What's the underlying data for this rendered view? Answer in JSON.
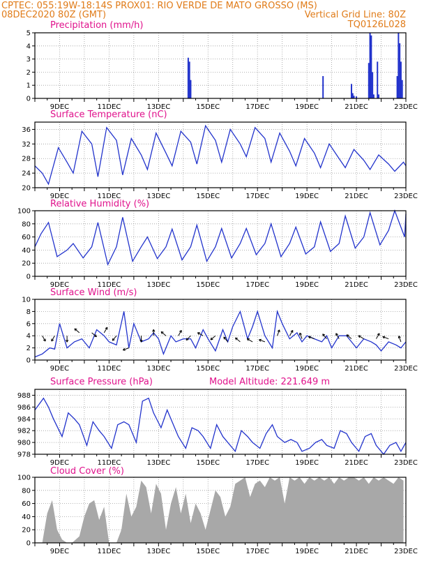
{
  "header": {
    "left_line1": "CPTEC:   055:19W-18:14S   PROX01: RIO VERDE DE MATO GROSSO (MS)",
    "left_line2": "08DEC2020 80Z (GMT)",
    "right_line2": "Vertical Grid Line: 80Z",
    "right_line3": "TQ0126L028"
  },
  "colors": {
    "header": "#e07b18",
    "title": "#e0128c",
    "line": "#2233cc",
    "cloud": "#a8a8a8",
    "grid": "#9a9a9a"
  },
  "date_labels": [
    "9DEC",
    "11DEC",
    "13DEC",
    "15DEC",
    "17DEC",
    "19DEC",
    "21DEC",
    "23DEC"
  ],
  "chart_data": [
    {
      "id": "precip",
      "type": "bar",
      "title": "Precipitation (mm/h)",
      "x_range_days": [
        8.0,
        23.0
      ],
      "ylim": [
        0,
        5
      ],
      "yticks": [
        0,
        1,
        2,
        3,
        4,
        5
      ],
      "x": [
        14.2,
        14.25,
        14.3,
        19.65,
        20.8,
        20.85,
        20.9,
        21.0,
        21.5,
        21.55,
        21.6,
        21.65,
        21.7,
        21.85,
        21.9,
        22.65,
        22.7,
        22.75,
        22.8,
        22.85
      ],
      "values": [
        3.1,
        2.8,
        1.4,
        1.7,
        1.1,
        0.4,
        0.2,
        0.15,
        2.7,
        5.0,
        4.8,
        2.0,
        0.3,
        2.8,
        0.3,
        1.7,
        5.0,
        4.2,
        2.8,
        1.4
      ]
    },
    {
      "id": "temp",
      "type": "line",
      "title": "Surface Temperature (nC)",
      "x_range_days": [
        8.0,
        23.0
      ],
      "ylim": [
        20,
        38
      ],
      "yticks": [
        20,
        24,
        28,
        32,
        36
      ],
      "x": [
        8.0,
        8.3,
        8.55,
        8.95,
        9.3,
        9.55,
        9.9,
        10.3,
        10.55,
        10.9,
        11.3,
        11.55,
        11.9,
        12.3,
        12.55,
        12.9,
        13.3,
        13.55,
        13.9,
        14.3,
        14.55,
        14.9,
        15.3,
        15.55,
        15.9,
        16.3,
        16.55,
        16.9,
        17.3,
        17.55,
        17.9,
        18.3,
        18.55,
        18.9,
        19.3,
        19.55,
        19.9,
        20.3,
        20.55,
        20.9,
        21.3,
        21.55,
        21.9,
        22.3,
        22.55,
        22.9,
        23.0
      ],
      "y": [
        26.0,
        24.0,
        21.0,
        31.0,
        27.0,
        24.0,
        35.5,
        32.0,
        23.0,
        36.5,
        33.0,
        23.5,
        33.5,
        29.0,
        25.0,
        35.0,
        29.5,
        26.0,
        35.5,
        32.5,
        26.5,
        37.0,
        33.0,
        27.0,
        36.0,
        32.0,
        28.5,
        36.5,
        33.5,
        27.0,
        35.0,
        30.0,
        26.0,
        33.5,
        29.5,
        25.5,
        32.0,
        28.0,
        25.5,
        30.5,
        27.5,
        25.0,
        29.0,
        26.5,
        24.5,
        27.0,
        26.0
      ]
    },
    {
      "id": "rh",
      "type": "line",
      "title": "Relative Humidity (%)",
      "x_range_days": [
        8.0,
        23.0
      ],
      "ylim": [
        0,
        100
      ],
      "yticks": [
        0,
        20,
        40,
        60,
        80,
        100
      ],
      "x": [
        8.0,
        8.25,
        8.55,
        8.9,
        9.3,
        9.55,
        9.95,
        10.3,
        10.55,
        10.95,
        11.3,
        11.55,
        11.95,
        12.3,
        12.55,
        12.95,
        13.3,
        13.55,
        13.95,
        14.3,
        14.55,
        14.95,
        15.3,
        15.55,
        15.95,
        16.3,
        16.55,
        16.95,
        17.3,
        17.55,
        17.95,
        18.3,
        18.55,
        18.95,
        19.3,
        19.55,
        19.95,
        20.3,
        20.55,
        20.95,
        21.3,
        21.55,
        21.95,
        22.3,
        22.55,
        22.95,
        23.0
      ],
      "y": [
        45.0,
        65.0,
        82.0,
        30.0,
        40.0,
        50.0,
        28.0,
        45.0,
        82.0,
        18.0,
        45.0,
        90.0,
        23.0,
        45.0,
        60.0,
        27.0,
        45.0,
        72.0,
        25.0,
        45.0,
        78.0,
        23.0,
        45.0,
        73.0,
        28.0,
        50.0,
        73.0,
        33.0,
        50.0,
        80.0,
        30.0,
        50.0,
        75.0,
        34.0,
        45.0,
        83.0,
        38.0,
        50.0,
        92.0,
        43.0,
        60.0,
        97.0,
        48.0,
        70.0,
        100.0,
        60.0,
        95.0
      ]
    },
    {
      "id": "wind",
      "type": "line",
      "title": "Surface Wind (m/s)",
      "x_range_days": [
        8.0,
        23.0
      ],
      "ylim": [
        0,
        10
      ],
      "yticks": [
        0,
        2,
        4,
        6,
        8,
        10
      ],
      "x": [
        8.0,
        8.3,
        8.6,
        8.8,
        9.0,
        9.3,
        9.6,
        9.9,
        10.2,
        10.5,
        10.8,
        11.0,
        11.3,
        11.6,
        11.8,
        12.0,
        12.3,
        12.6,
        12.8,
        13.0,
        13.2,
        13.5,
        13.7,
        14.0,
        14.3,
        14.5,
        14.8,
        15.0,
        15.3,
        15.6,
        15.8,
        16.0,
        16.3,
        16.6,
        16.8,
        17.0,
        17.3,
        17.6,
        17.8,
        18.0,
        18.3,
        18.6,
        18.8,
        19.0,
        19.3,
        19.6,
        19.8,
        20.0,
        20.3,
        20.6,
        20.8,
        21.0,
        21.3,
        21.6,
        21.8,
        22.0,
        22.3,
        22.6,
        22.8,
        23.0
      ],
      "y": [
        0.5,
        1.0,
        2.0,
        1.8,
        6.0,
        2.0,
        3.0,
        3.5,
        2.0,
        5.0,
        4.0,
        3.0,
        2.5,
        8.0,
        2.0,
        6.0,
        3.0,
        3.5,
        4.5,
        3.5,
        1.0,
        4.0,
        3.0,
        3.5,
        3.5,
        2.0,
        5.0,
        3.5,
        1.5,
        5.0,
        3.0,
        5.5,
        8.0,
        3.5,
        5.5,
        8.0,
        4.0,
        2.0,
        8.0,
        6.0,
        3.5,
        4.5,
        3.0,
        4.0,
        3.5,
        3.0,
        4.0,
        2.0,
        4.0,
        4.0,
        3.0,
        2.0,
        3.5,
        3.0,
        2.5,
        1.5,
        3.0,
        2.5,
        2.0,
        3.0
      ],
      "arrows": [
        {
          "x": 8.3,
          "y": 4.0,
          "dir": 60
        },
        {
          "x": 8.8,
          "y": 4.0,
          "dir": 120
        },
        {
          "x": 9.3,
          "y": 4.0,
          "dir": 90
        },
        {
          "x": 9.8,
          "y": 4.5,
          "dir": 220
        },
        {
          "x": 10.3,
          "y": 4.5,
          "dir": 40
        },
        {
          "x": 10.8,
          "y": 4.5,
          "dir": 300
        },
        {
          "x": 11.3,
          "y": 4.0,
          "dir": 130
        },
        {
          "x": 11.8,
          "y": 2.0,
          "dir": 160
        },
        {
          "x": 12.3,
          "y": 4.0,
          "dir": 90
        },
        {
          "x": 12.8,
          "y": 4.0,
          "dir": 270
        },
        {
          "x": 13.3,
          "y": 4.0,
          "dir": 220
        },
        {
          "x": 13.8,
          "y": 4.0,
          "dir": 300
        },
        {
          "x": 14.3,
          "y": 4.0,
          "dir": 135
        },
        {
          "x": 14.8,
          "y": 4.0,
          "dir": 210
        },
        {
          "x": 15.3,
          "y": 4.0,
          "dir": 140
        },
        {
          "x": 15.8,
          "y": 3.0,
          "dir": 230
        },
        {
          "x": 16.3,
          "y": 3.0,
          "dir": 220
        },
        {
          "x": 16.8,
          "y": 3.0,
          "dir": 210
        },
        {
          "x": 17.3,
          "y": 3.0,
          "dir": 200
        },
        {
          "x": 17.8,
          "y": 4.0,
          "dir": 290
        },
        {
          "x": 18.3,
          "y": 4.0,
          "dir": 300
        },
        {
          "x": 18.8,
          "y": 3.5,
          "dir": 250
        },
        {
          "x": 19.3,
          "y": 3.5,
          "dir": 200
        },
        {
          "x": 19.8,
          "y": 3.5,
          "dir": 230
        },
        {
          "x": 20.3,
          "y": 3.5,
          "dir": 240
        },
        {
          "x": 20.8,
          "y": 3.5,
          "dir": 220
        },
        {
          "x": 21.3,
          "y": 3.5,
          "dir": 210
        },
        {
          "x": 21.8,
          "y": 3.5,
          "dir": 300
        },
        {
          "x": 22.3,
          "y": 3.5,
          "dir": 200
        },
        {
          "x": 22.8,
          "y": 3.0,
          "dir": 250
        }
      ]
    },
    {
      "id": "press",
      "type": "line",
      "title": "Surface Pressure (hPa)",
      "annotation": "Model Altitude: 221.649 m",
      "x_range_days": [
        8.0,
        23.0
      ],
      "ylim": [
        978,
        989
      ],
      "yticks": [
        978,
        980,
        982,
        984,
        986,
        988
      ],
      "x": [
        8.0,
        8.35,
        8.55,
        8.75,
        9.1,
        9.35,
        9.6,
        9.8,
        10.1,
        10.35,
        10.6,
        10.8,
        11.1,
        11.35,
        11.6,
        11.8,
        12.1,
        12.35,
        12.6,
        12.8,
        13.1,
        13.35,
        13.6,
        13.8,
        14.1,
        14.35,
        14.6,
        14.8,
        15.1,
        15.35,
        15.6,
        15.8,
        16.1,
        16.35,
        16.6,
        16.8,
        17.1,
        17.35,
        17.6,
        17.8,
        18.1,
        18.35,
        18.6,
        18.8,
        19.1,
        19.35,
        19.6,
        19.8,
        20.1,
        20.35,
        20.6,
        20.8,
        21.1,
        21.35,
        21.6,
        21.8,
        22.1,
        22.35,
        22.6,
        22.8,
        23.0
      ],
      "y": [
        985.5,
        987.5,
        986.0,
        984.0,
        981.0,
        985.0,
        984.0,
        983.0,
        979.5,
        983.5,
        982.0,
        981.0,
        979.0,
        983.0,
        983.5,
        983.0,
        980.0,
        987.0,
        987.5,
        985.0,
        982.5,
        985.5,
        983.0,
        981.0,
        979.0,
        982.5,
        982.0,
        981.0,
        979.0,
        983.0,
        981.0,
        980.0,
        978.5,
        982.0,
        981.0,
        980.0,
        979.0,
        981.5,
        983.0,
        981.0,
        980.0,
        980.5,
        980.0,
        978.5,
        979.0,
        980.0,
        980.5,
        979.5,
        979.0,
        982.0,
        981.5,
        980.0,
        978.5,
        981.0,
        981.5,
        979.5,
        978.0,
        979.5,
        980.0,
        978.5,
        980.0
      ]
    },
    {
      "id": "cloud",
      "type": "area",
      "title": "Cloud Cover (%)",
      "x_range_days": [
        8.0,
        23.0
      ],
      "ylim": [
        0,
        100
      ],
      "yticks": [
        0,
        20,
        40,
        60,
        80,
        100
      ],
      "x": [
        8.0,
        8.3,
        8.5,
        8.7,
        8.9,
        9.1,
        9.3,
        9.5,
        9.8,
        10.0,
        10.2,
        10.4,
        10.6,
        10.8,
        11.0,
        11.3,
        11.5,
        11.7,
        11.9,
        12.1,
        12.3,
        12.5,
        12.7,
        12.9,
        13.1,
        13.3,
        13.5,
        13.7,
        13.9,
        14.1,
        14.3,
        14.5,
        14.7,
        14.9,
        15.1,
        15.3,
        15.5,
        15.7,
        15.9,
        16.1,
        16.3,
        16.5,
        16.7,
        16.9,
        17.1,
        17.3,
        17.5,
        17.7,
        17.9,
        18.1,
        18.3,
        18.5,
        18.7,
        18.9,
        19.1,
        19.3,
        19.5,
        19.7,
        19.9,
        20.1,
        20.3,
        20.5,
        20.7,
        20.9,
        21.1,
        21.3,
        21.5,
        21.7,
        21.9,
        22.1,
        22.3,
        22.5,
        22.7,
        22.9
      ],
      "y": [
        0,
        0,
        45,
        65,
        20,
        5,
        0,
        0,
        10,
        40,
        60,
        65,
        35,
        55,
        0,
        0,
        20,
        75,
        40,
        55,
        95,
        85,
        45,
        90,
        75,
        20,
        60,
        85,
        45,
        75,
        30,
        60,
        45,
        20,
        50,
        80,
        70,
        40,
        55,
        90,
        95,
        100,
        70,
        90,
        95,
        85,
        100,
        95,
        100,
        60,
        100,
        95,
        100,
        90,
        100,
        95,
        100,
        95,
        100,
        90,
        100,
        95,
        100,
        100,
        95,
        100,
        90,
        100,
        95,
        100,
        95,
        90,
        100,
        95
      ]
    }
  ]
}
